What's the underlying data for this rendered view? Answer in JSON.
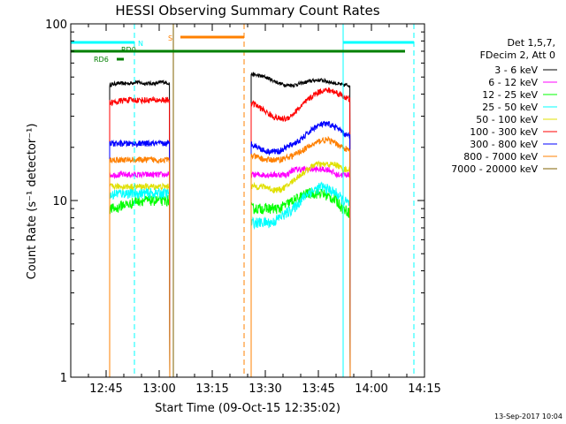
{
  "chart_data": {
    "type": "line",
    "title": "HESSI Observing Summary Count Rates",
    "xlabel": "Start Time (09-Oct-15 12:35:02)",
    "ylabel": "Count Rate (s⁻¹ detector⁻¹)",
    "y_scale": "log",
    "ylim": [
      1,
      100
    ],
    "xlim": [
      "12:35",
      "14:15"
    ],
    "x_ticks": [
      "12:45",
      "13:00",
      "13:15",
      "13:30",
      "13:45",
      "14:00",
      "14:15"
    ],
    "y_ticks": [
      "1",
      "10",
      "100"
    ],
    "grid": false,
    "legend": {
      "placement": "right",
      "header": [
        "Det 1,5,7,",
        "FDecim 2, Att 0"
      ]
    },
    "series": [
      {
        "name": "3 - 6 keV",
        "color": "#000000",
        "segments": [
          {
            "start": "12:46",
            "end": "13:03",
            "values": [
              45,
              46,
              46,
              46,
              47,
              46,
              46,
              46,
              47,
              46
            ]
          },
          {
            "start": "13:26",
            "end": "13:54",
            "values": [
              52,
              51,
              50,
              48,
              46,
              45,
              45,
              46,
              47,
              48,
              48,
              47,
              46,
              45,
              45
            ]
          }
        ]
      },
      {
        "name": "6 - 12 keV",
        "color": "#ff00ff",
        "segments": [
          {
            "start": "12:46",
            "end": "13:03",
            "values": [
              14,
              14,
              14,
              14,
              14,
              14,
              14,
              14,
              14,
              14
            ]
          },
          {
            "start": "13:26",
            "end": "13:54",
            "values": [
              14,
              14,
              14,
              14,
              14,
              14,
              15,
              15,
              15,
              15,
              15,
              15,
              14,
              14,
              14
            ]
          }
        ]
      },
      {
        "name": "12 - 25 keV",
        "color": "#00ff00",
        "segments": [
          {
            "start": "12:46",
            "end": "13:03",
            "values": [
              9,
              9,
              9.5,
              9.5,
              10,
              10,
              10,
              10,
              10,
              10
            ]
          },
          {
            "start": "13:26",
            "end": "13:54",
            "values": [
              9,
              9,
              9,
              9,
              9,
              9.5,
              10,
              10.5,
              11,
              11,
              11,
              10.5,
              10,
              9,
              8.5
            ]
          }
        ]
      },
      {
        "name": "25 - 50 keV",
        "color": "#00ffff",
        "segments": [
          {
            "start": "12:46",
            "end": "13:03",
            "values": [
              10.5,
              11,
              11,
              11,
              11,
              11,
              11,
              11,
              11,
              11
            ]
          },
          {
            "start": "13:26",
            "end": "13:54",
            "values": [
              7.5,
              7.5,
              7.5,
              7.5,
              8,
              8.5,
              9,
              10,
              11,
              11.5,
              12,
              11.5,
              11,
              10,
              9.5
            ]
          }
        ]
      },
      {
        "name": "50 - 100 keV",
        "color": "#e0e000",
        "segments": [
          {
            "start": "12:46",
            "end": "13:03",
            "values": [
              12,
              12,
              12,
              12,
              12,
              12,
              12,
              12,
              12,
              12
            ]
          },
          {
            "start": "13:26",
            "end": "13:54",
            "values": [
              12,
              12,
              12,
              11.5,
              11.5,
              12,
              13,
              14,
              15,
              16,
              16,
              16,
              16,
              15,
              15
            ]
          }
        ]
      },
      {
        "name": "100 - 300 keV",
        "color": "#ff0000",
        "segments": [
          {
            "start": "12:46",
            "end": "13:03",
            "values": [
              36,
              36,
              37,
              37,
              37,
              37,
              37,
              37,
              37,
              37
            ]
          },
          {
            "start": "13:26",
            "end": "13:54",
            "values": [
              36,
              34,
              32,
              30,
              29,
              29,
              31,
              34,
              37,
              40,
              42,
              42,
              41,
              39,
              37
            ]
          }
        ]
      },
      {
        "name": "300 - 800 keV",
        "color": "#0000ff",
        "segments": [
          {
            "start": "12:46",
            "end": "13:03",
            "values": [
              21,
              21,
              21,
              21,
              21,
              21,
              21,
              21,
              21,
              21
            ]
          },
          {
            "start": "13:26",
            "end": "13:54",
            "values": [
              21,
              20,
              19,
              19,
              19,
              20,
              21,
              22,
              24,
              26,
              27,
              27,
              26,
              24,
              23
            ]
          }
        ]
      },
      {
        "name": "800 - 7000 keV",
        "color": "#ff8000",
        "segments": [
          {
            "start": "12:46",
            "end": "13:03",
            "values": [
              17,
              17,
              17,
              17,
              17,
              17,
              17,
              17,
              17,
              17
            ]
          },
          {
            "start": "13:26",
            "end": "13:54",
            "values": [
              18,
              17.5,
              17,
              17,
              17,
              17.5,
              18,
              19,
              20,
              21,
              22,
              22,
              21,
              20,
              19
            ]
          }
        ]
      },
      {
        "name": "7000 - 20000 keV",
        "color": "#806000",
        "segments": []
      }
    ],
    "flags": {
      "N": {
        "label": "N",
        "color": "#00ffff",
        "intervals": [
          [
            "12:35",
            "12:53"
          ],
          [
            "13:52",
            "14:12"
          ]
        ]
      },
      "RD0": {
        "label": "RD0",
        "color": "#008000",
        "intervals": [
          [
            "12:35",
            "14:12"
          ]
        ]
      },
      "RD6": {
        "label": "RD6",
        "color": "#008000",
        "intervals": [
          [
            "12:48",
            "12:50"
          ]
        ]
      },
      "S": {
        "label": "S",
        "color": "#ff8000",
        "intervals": [
          [
            "13:06",
            "13:24"
          ]
        ]
      }
    },
    "vertical_lines": [
      {
        "time": "12:35",
        "color": "#00ffff",
        "style": "solid"
      },
      {
        "time": "12:53",
        "color": "#00ffff",
        "style": "dashed"
      },
      {
        "time": "13:04",
        "color": "#806000",
        "style": "solid"
      },
      {
        "time": "13:24",
        "color": "#ff8000",
        "style": "dashed"
      },
      {
        "time": "13:52",
        "color": "#00ffff",
        "style": "solid"
      },
      {
        "time": "14:12",
        "color": "#00ffff",
        "style": "dashed"
      }
    ],
    "annotations": {
      "timestamp": "13-Sep-2017 10:04"
    }
  }
}
